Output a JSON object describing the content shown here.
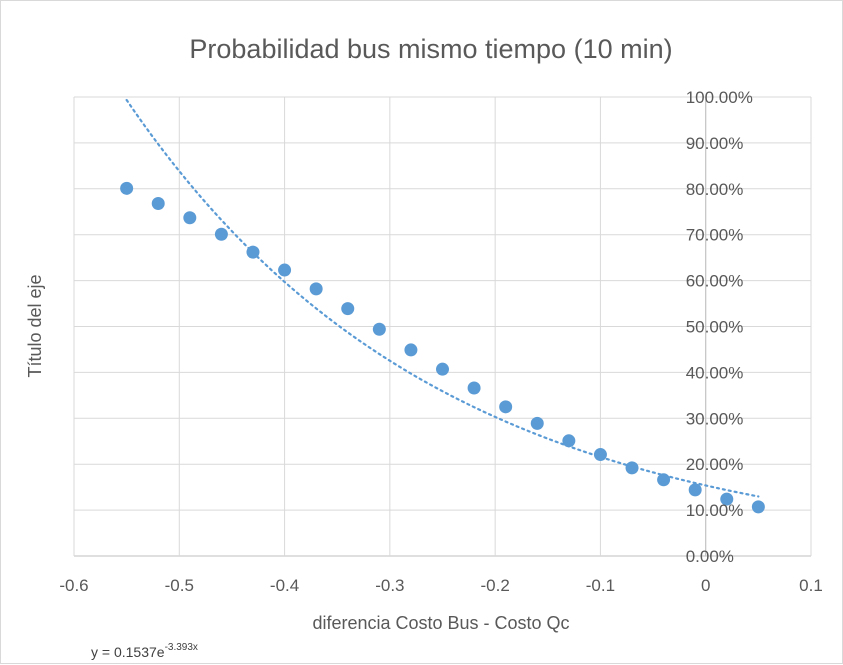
{
  "chart_data": {
    "type": "scatter",
    "title": "Probabilidad bus mismo tiempo (10 min)",
    "xlabel": "diferencia Costo Bus - Costo Qc",
    "ylabel": "Título del eje",
    "xlim": [
      -0.6,
      0.1
    ],
    "ylim": [
      0,
      1
    ],
    "x_ticks": [
      "-0.6",
      "-0.5",
      "-0.4",
      "-0.3",
      "-0.2",
      "-0.1",
      "0",
      "0.1"
    ],
    "y_ticks": [
      "0.00%",
      "10.00%",
      "20.00%",
      "30.00%",
      "40.00%",
      "50.00%",
      "60.00%",
      "70.00%",
      "80.00%",
      "90.00%",
      "100.00%"
    ],
    "grid": true,
    "series": [
      {
        "x": [
          -0.55,
          -0.52,
          -0.49,
          -0.46,
          -0.43,
          -0.4,
          -0.37,
          -0.34,
          -0.31,
          -0.28,
          -0.25,
          -0.22,
          -0.19,
          -0.16,
          -0.13,
          -0.1,
          -0.07,
          -0.04,
          -0.01,
          0.02,
          0.05
        ],
        "y": [
          0.801,
          0.768,
          0.737,
          0.701,
          0.662,
          0.623,
          0.582,
          0.539,
          0.494,
          0.449,
          0.407,
          0.366,
          0.325,
          0.289,
          0.251,
          0.221,
          0.192,
          0.166,
          0.144,
          0.124,
          0.107
        ],
        "color": "#5b9bd5"
      }
    ],
    "trendline": {
      "type": "exponential",
      "a": 0.1537,
      "b": -3.393,
      "x_range": [
        -0.55,
        0.05
      ],
      "equation_text": "y = 0.1537e",
      "equation_exponent": "-3.393x"
    }
  }
}
